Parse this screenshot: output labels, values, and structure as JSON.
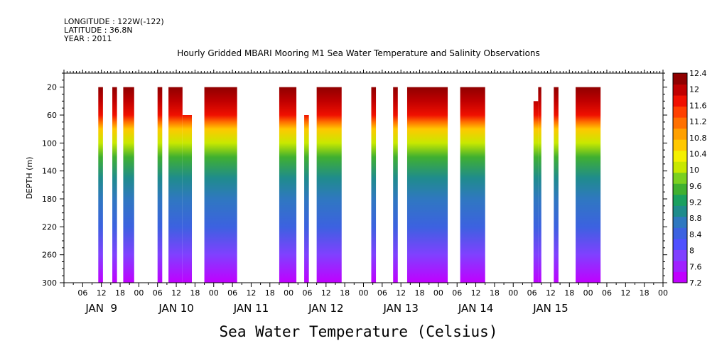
{
  "header": {
    "longitude": "LONGITUDE : 122W(-122)",
    "latitude": "LATITUDE : 36.8N",
    "year": "YEAR : 2011",
    "title": "Hourly Gridded MBARI Mooring M1 Sea Water Temperature and Salinity Observations",
    "bottom_title": "Sea Water Temperature (Celsius)"
  },
  "chart_data": {
    "type": "heatmap",
    "title": "Hourly Gridded MBARI Mooring M1 Sea Water Temperature and Salinity Observations",
    "xlabel": "",
    "ylabel": "DEPTH (m)",
    "xlim_hours": [
      0,
      192
    ],
    "ylim": [
      300,
      0
    ],
    "y_ticks": [
      20,
      60,
      100,
      140,
      180,
      220,
      260,
      300
    ],
    "x_tick_labels": [
      "06",
      "12",
      "18",
      "00",
      "06",
      "12",
      "18",
      "00",
      "06",
      "12",
      "18",
      "00",
      "06",
      "12",
      "18",
      "00",
      "06",
      "12",
      "18",
      "00",
      "06",
      "12",
      "18",
      "00",
      "06",
      "12",
      "18",
      "00",
      "06",
      "12",
      "18",
      "00"
    ],
    "day_labels": [
      "JAN  9",
      "JAN 10",
      "JAN 11",
      "JAN 12",
      "JAN 13",
      "JAN 14",
      "JAN 15"
    ],
    "colorbar": {
      "levels": [
        7.2,
        7.6,
        8,
        8.4,
        8.8,
        9.2,
        9.6,
        10,
        10.4,
        10.8,
        11.2,
        11.6,
        12,
        12.4
      ],
      "labels": [
        "7.2",
        "7.6",
        "8",
        "8.4",
        "8.8",
        "9.2",
        "9.6",
        "10",
        "10.4",
        "10.8",
        "11.2",
        "11.6",
        "12",
        "12.4"
      ],
      "colors": [
        "#c000ff",
        "#a020ff",
        "#8040ff",
        "#5050ff",
        "#3c62e0",
        "#2f78c0",
        "#1f8c8c",
        "#1aa060",
        "#40b030",
        "#7ad020",
        "#c8e800",
        "#f4f000",
        "#ffc800",
        "#ffa000",
        "#ff7000",
        "#ff4000",
        "#f01000",
        "#c00000",
        "#900000"
      ]
    },
    "data_segments": [
      {
        "start_hour": 11,
        "end_hour": 12.5,
        "top_depth": 20
      },
      {
        "start_hour": 15.5,
        "end_hour": 17,
        "top_depth": 20
      },
      {
        "start_hour": 19,
        "end_hour": 22.5,
        "top_depth": 20
      },
      {
        "start_hour": 30,
        "end_hour": 31.5,
        "top_depth": 20
      },
      {
        "start_hour": 33.5,
        "end_hour": 38,
        "top_depth": 20
      },
      {
        "start_hour": 38,
        "end_hour": 41,
        "top_depth": 60
      },
      {
        "start_hour": 45,
        "end_hour": 55.5,
        "top_depth": 20
      },
      {
        "start_hour": 69,
        "end_hour": 74.5,
        "top_depth": 20
      },
      {
        "start_hour": 77,
        "end_hour": 78.5,
        "top_depth": 60
      },
      {
        "start_hour": 81,
        "end_hour": 89,
        "top_depth": 20
      },
      {
        "start_hour": 98.5,
        "end_hour": 100,
        "top_depth": 20
      },
      {
        "start_hour": 105.5,
        "end_hour": 107,
        "top_depth": 20
      },
      {
        "start_hour": 110,
        "end_hour": 123,
        "top_depth": 20
      },
      {
        "start_hour": 127,
        "end_hour": 135,
        "top_depth": 20
      },
      {
        "start_hour": 150.5,
        "end_hour": 152,
        "top_depth": 40
      },
      {
        "start_hour": 152,
        "end_hour": 153,
        "top_depth": 20
      },
      {
        "start_hour": 157,
        "end_hour": 158.5,
        "top_depth": 20
      },
      {
        "start_hour": 164,
        "end_hour": 172,
        "top_depth": 20
      }
    ],
    "vertical_profile": [
      {
        "depth": 20,
        "value": 12.3
      },
      {
        "depth": 40,
        "value": 12.1
      },
      {
        "depth": 60,
        "value": 11.8
      },
      {
        "depth": 70,
        "value": 11.2
      },
      {
        "depth": 80,
        "value": 10.6
      },
      {
        "depth": 100,
        "value": 10.0
      },
      {
        "depth": 120,
        "value": 9.6
      },
      {
        "depth": 150,
        "value": 9.1
      },
      {
        "depth": 180,
        "value": 8.7
      },
      {
        "depth": 220,
        "value": 8.3
      },
      {
        "depth": 260,
        "value": 7.9
      },
      {
        "depth": 300,
        "value": 7.3
      }
    ]
  }
}
